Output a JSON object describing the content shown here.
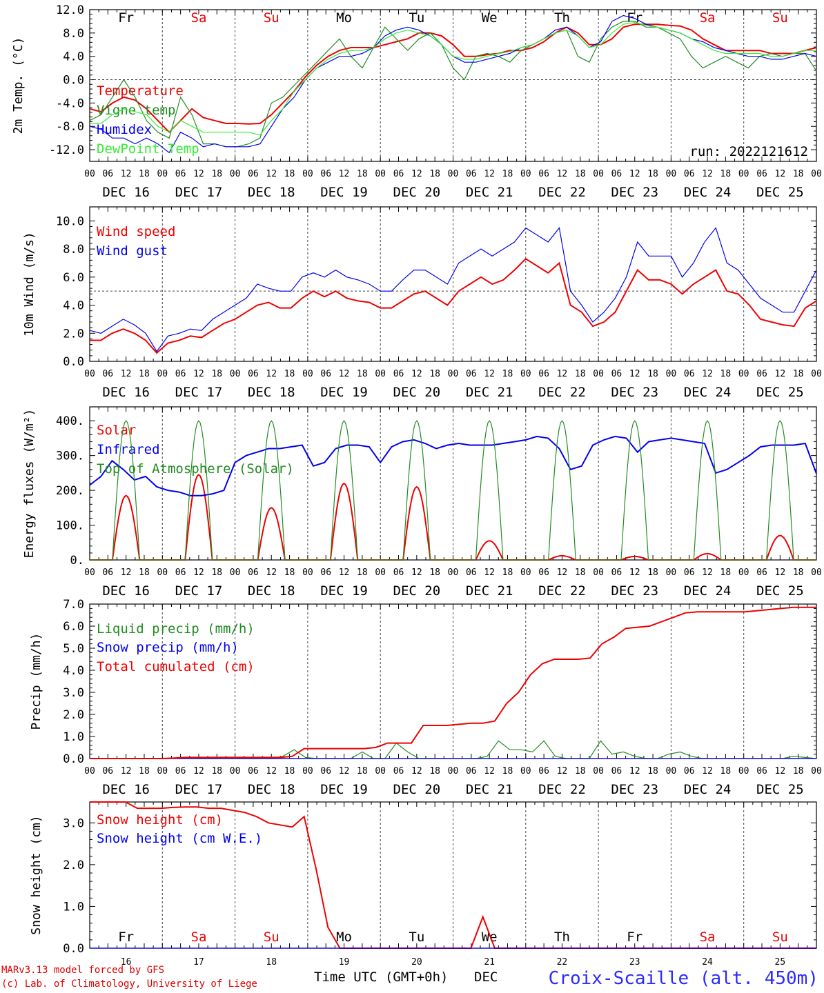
{
  "footer": {
    "credit_line1": "MARv3.13 model forced by GFS",
    "credit_line2": "(c) Lab. of Climatology, University of Liege",
    "time_label": "Time UTC (GMT+0h)",
    "month_label": "DEC",
    "station": "Croix-Scaille (alt. 450m)"
  },
  "days": [
    "DEC 16",
    "DEC 17",
    "DEC 18",
    "DEC 19",
    "DEC 20",
    "DEC 21",
    "DEC 22",
    "DEC 23",
    "DEC 24",
    "DEC 25"
  ],
  "day_numbers": [
    "16",
    "17",
    "18",
    "19",
    "20",
    "21",
    "22",
    "23",
    "24",
    "25"
  ],
  "weekdays": [
    "Fr",
    "Sa",
    "Su",
    "Mo",
    "Tu",
    "We",
    "Th",
    "Fr",
    "Sa",
    "Su"
  ],
  "weekend_flags": [
    false,
    true,
    true,
    false,
    false,
    false,
    false,
    false,
    true,
    true
  ],
  "hour_ticks": [
    "00",
    "06",
    "12",
    "18"
  ],
  "final_hour": "00",
  "colors": {
    "red": "#ee0000",
    "green": "#228b22",
    "blue": "#0000ee",
    "lightgreen": "#33ee33",
    "weekend": "#ee0000"
  },
  "chart_data": [
    {
      "type": "line",
      "ylabel": "2m Temp. (°C)",
      "ylim": [
        -14,
        12
      ],
      "yticks": [
        "-12.0",
        "-8.0",
        "-4.0",
        "0.0",
        "4.0",
        "8.0",
        "12.0"
      ],
      "yticks_values": [
        -12,
        -8,
        -4,
        0,
        4,
        8,
        12
      ],
      "reference_line": 0,
      "annotation": "run: 2022121612",
      "x_step_hours": 6,
      "series": [
        {
          "name": "Temperature",
          "color": "red",
          "values": [
            -5,
            -5.5,
            -4,
            -3,
            -3.5,
            -5,
            -7,
            -9,
            -7,
            -5,
            -6.5,
            -7,
            -7.5,
            -7.5,
            -7.6,
            -7.5,
            -6,
            -4,
            -2,
            0.5,
            2.5,
            4,
            5,
            5.5,
            5.5,
            5.5,
            6,
            6.5,
            7,
            8,
            8,
            7.5,
            6,
            4,
            4,
            4.3,
            4.5,
            5,
            5,
            5.5,
            6.5,
            8,
            9,
            8,
            6,
            6,
            7,
            9,
            9.5,
            9.5,
            9.5,
            9.3,
            9.2,
            8.5,
            7,
            6,
            5,
            5,
            5,
            5,
            4.5,
            4.5,
            4.5,
            5,
            5.5
          ]
        },
        {
          "name": "Vigne temp",
          "color": "green",
          "values": [
            -7,
            -6,
            -3,
            0,
            -3,
            -7,
            -9,
            -10,
            -3,
            -6,
            -11,
            -11,
            -11.5,
            -11.5,
            -11,
            -10,
            -4,
            -3,
            -1,
            1,
            3,
            5,
            7,
            4,
            2,
            5.5,
            9,
            7,
            5,
            7,
            8,
            6,
            2,
            0,
            4,
            4.5,
            4,
            3,
            5,
            6,
            7,
            8,
            8.5,
            4,
            3,
            7,
            9,
            10,
            10,
            9,
            9,
            8,
            7,
            4,
            2,
            3,
            4,
            3,
            2,
            4,
            4.5,
            4,
            4.5,
            4.5,
            1.5
          ]
        },
        {
          "name": "Humidex",
          "color": "blue",
          "values": [
            -8,
            -8.5,
            -10,
            -10,
            -11,
            -10,
            -11,
            -12.5,
            -9,
            -10,
            -11.5,
            -11,
            -11.5,
            -11.5,
            -11.5,
            -11,
            -8,
            -5,
            -3,
            0,
            2,
            3,
            4,
            4,
            4.5,
            5.5,
            7.5,
            8.5,
            9,
            8.5,
            7.5,
            6,
            4,
            3,
            3,
            3.5,
            4,
            4.5,
            5.5,
            6,
            7,
            8.5,
            9,
            7.5,
            5.5,
            6.5,
            10,
            11,
            10.5,
            9.5,
            9,
            8.5,
            8,
            7,
            6.5,
            5.5,
            5,
            4.5,
            4,
            4,
            3.5,
            3.5,
            4,
            4.5,
            4
          ]
        },
        {
          "name": "DewPoint Temp",
          "color": "lightgreen",
          "values": [
            -7.5,
            -7.5,
            -6,
            -5,
            -5.5,
            -6,
            -8,
            -9,
            -7,
            -8,
            -9,
            -9,
            -9,
            -9,
            -9,
            -9.5,
            -7,
            -5,
            -2,
            0,
            2,
            3.5,
            4.5,
            5,
            5,
            5.5,
            7,
            8,
            8.5,
            8,
            7.5,
            6,
            4,
            3.5,
            3.5,
            4,
            4.5,
            4.8,
            5.5,
            6,
            7,
            8,
            8.5,
            7.5,
            5.5,
            6,
            8,
            9.5,
            9.8,
            9.3,
            9,
            8.5,
            8,
            7,
            6,
            5,
            4.5,
            4.5,
            4.5,
            4.5,
            4,
            4,
            4.5,
            5,
            5
          ]
        }
      ]
    },
    {
      "type": "line",
      "ylabel": "10m Wind (m/s)",
      "ylim": [
        0,
        11
      ],
      "yticks": [
        "0.0",
        "2.0",
        "4.0",
        "6.0",
        "8.0",
        "10.0"
      ],
      "yticks_values": [
        0,
        2,
        4,
        6,
        8,
        10
      ],
      "reference_line": 5,
      "x_step_hours": 6,
      "series": [
        {
          "name": "Wind speed",
          "color": "red",
          "values": [
            1.5,
            1.5,
            2,
            2.3,
            2,
            1.5,
            0.6,
            1.3,
            1.5,
            1.8,
            1.7,
            2.2,
            2.7,
            3,
            3.5,
            4,
            4.2,
            3.8,
            3.8,
            4.5,
            5,
            4.6,
            5,
            4.5,
            4.3,
            4.2,
            3.8,
            3.8,
            4.3,
            4.8,
            5,
            4.5,
            4,
            5,
            5.5,
            6,
            5.5,
            5.8,
            6.5,
            7.3,
            6.8,
            6.3,
            7,
            4,
            3.5,
            2.5,
            2.8,
            3.5,
            5,
            6.5,
            5.8,
            5.8,
            5.5,
            4.8,
            5.5,
            6,
            6.5,
            5,
            4.8,
            4,
            3,
            2.8,
            2.6,
            2.5,
            3.8,
            4.3
          ]
        },
        {
          "name": "Wind gust",
          "color": "blue",
          "values": [
            2.2,
            2,
            2.5,
            3,
            2.6,
            2,
            0.7,
            1.8,
            2,
            2.3,
            2.2,
            3,
            3.5,
            4,
            4.5,
            5.5,
            5.2,
            5,
            5,
            6,
            6.3,
            6,
            6.5,
            6,
            5.8,
            5.5,
            5,
            5,
            5.8,
            6.5,
            6.5,
            6,
            5.5,
            7,
            7.5,
            8,
            7.5,
            8,
            8.5,
            9.5,
            9,
            8.5,
            9.5,
            5,
            4,
            2.8,
            3.5,
            4.5,
            6,
            8.5,
            7.5,
            7.5,
            7.5,
            6,
            7,
            8.5,
            9.5,
            7,
            6.5,
            5.5,
            4.5,
            4,
            3.5,
            3.5,
            5,
            6.5
          ]
        }
      ]
    },
    {
      "type": "line",
      "ylabel": "Energy fluxes (W/m²)",
      "ylim": [
        0,
        440
      ],
      "yticks": [
        "0.",
        "100.",
        "200.",
        "300.",
        "400."
      ],
      "yticks_values": [
        0,
        100,
        200,
        300,
        400
      ],
      "x_step_hours": 6,
      "peaks": {
        "solar": [
          185,
          245,
          150,
          220,
          210,
          55,
          12,
          10,
          18,
          70
        ],
        "toa": 400
      },
      "series": [
        {
          "name": "Solar",
          "color": "red"
        },
        {
          "name": "Infrared",
          "color": "blue",
          "values": [
            215,
            240,
            285,
            260,
            230,
            240,
            210,
            200,
            195,
            185,
            185,
            190,
            200,
            280,
            300,
            310,
            320,
            320,
            325,
            330,
            270,
            280,
            320,
            330,
            330,
            325,
            280,
            325,
            340,
            345,
            335,
            320,
            330,
            335,
            330,
            330,
            330,
            335,
            340,
            345,
            355,
            350,
            320,
            260,
            270,
            330,
            345,
            355,
            350,
            310,
            340,
            345,
            350,
            345,
            340,
            335,
            250,
            260,
            280,
            300,
            325,
            330,
            330,
            330,
            335,
            248
          ]
        },
        {
          "name": "Top of Atmosphere (Solar)",
          "color": "green"
        }
      ]
    },
    {
      "type": "line",
      "ylabel": "Precip (mm/h)",
      "ylim": [
        0,
        7
      ],
      "yticks": [
        "0.0",
        "1.0",
        "2.0",
        "3.0",
        "4.0",
        "5.0",
        "6.0",
        "7.0"
      ],
      "yticks_values": [
        0,
        1,
        2,
        3,
        4,
        5,
        6,
        7
      ],
      "x_step_hours": 6,
      "series": [
        {
          "name": "Liquid precip (mm/h)",
          "color": "green",
          "values": [
            0,
            0,
            0,
            0,
            0,
            0,
            0,
            0,
            0,
            0,
            0,
            0,
            0,
            0,
            0,
            0,
            0,
            0.1,
            0.4,
            0.05,
            0,
            0,
            0,
            0,
            0.3,
            0,
            0,
            0.7,
            0.3,
            0,
            0,
            0,
            0,
            0,
            0,
            0.1,
            0.8,
            0.4,
            0.4,
            0.3,
            0.8,
            0.1,
            0,
            0,
            0,
            0.8,
            0.2,
            0.3,
            0.1,
            0,
            0,
            0.2,
            0.3,
            0.1,
            0,
            0,
            0,
            0,
            0,
            0,
            0,
            0,
            0.1,
            0.05,
            0
          ]
        },
        {
          "name": "Snow precip (mm/h)",
          "color": "blue",
          "values": [
            0,
            0,
            0,
            0,
            0,
            0,
            0,
            0,
            0,
            0,
            0,
            0,
            0,
            0,
            0,
            0,
            0,
            0,
            0,
            0,
            0,
            0,
            0,
            0,
            0,
            0,
            0,
            0,
            0,
            0,
            0,
            0,
            0,
            0,
            0,
            0,
            0,
            0,
            0,
            0,
            0,
            0,
            0,
            0,
            0,
            0,
            0,
            0,
            0,
            0,
            0,
            0,
            0,
            0,
            0,
            0,
            0,
            0,
            0,
            0,
            0,
            0,
            0,
            0,
            0
          ]
        },
        {
          "name": "Total cumulated (cm)",
          "color": "red",
          "values": [
            0,
            0,
            0,
            0,
            0,
            0,
            0,
            0.02,
            0.05,
            0.05,
            0.05,
            0.05,
            0.05,
            0.05,
            0.05,
            0.05,
            0.05,
            0.1,
            0.45,
            0.45,
            0.45,
            0.45,
            0.45,
            0.45,
            0.5,
            0.7,
            0.7,
            0.7,
            1.5,
            1.5,
            1.5,
            1.55,
            1.6,
            1.6,
            1.7,
            2.5,
            3.0,
            3.8,
            4.3,
            4.5,
            4.5,
            4.5,
            4.55,
            5.2,
            5.5,
            5.9,
            5.95,
            6.0,
            6.2,
            6.4,
            6.6,
            6.65,
            6.65,
            6.65,
            6.65,
            6.65,
            6.7,
            6.75,
            6.8,
            6.85,
            6.85,
            6.85
          ]
        }
      ]
    },
    {
      "type": "line",
      "ylabel": "Snow height (cm)",
      "ylim": [
        0,
        3.5
      ],
      "yticks": [
        "0.0",
        "1.0",
        "2.0",
        "3.0"
      ],
      "yticks_values": [
        0,
        1,
        2,
        3
      ],
      "x_step_hours": 6,
      "series": [
        {
          "name": "Snow height (cm)",
          "color": "red",
          "values": [
            3.5,
            3.5,
            3.5,
            3.5,
            3.35,
            3.35,
            3.35,
            3.37,
            3.38,
            3.38,
            3.35,
            3.35,
            3.3,
            3.25,
            3.15,
            3.0,
            2.95,
            2.9,
            3.15,
            1.9,
            0.5,
            0,
            0,
            0,
            0,
            0,
            0,
            0,
            0,
            0,
            0,
            0,
            0,
            0.75,
            0,
            0,
            0,
            0,
            0,
            0,
            0,
            0,
            0,
            0,
            0,
            0,
            0,
            0,
            0,
            0,
            0,
            0,
            0,
            0,
            0,
            0,
            0,
            0,
            0,
            0,
            0,
            0
          ]
        },
        {
          "name": "Snow height (cm W.E.)",
          "color": "blue",
          "values": [
            0,
            0,
            0,
            0,
            0,
            0,
            0,
            0,
            0,
            0,
            0,
            0,
            0,
            0,
            0,
            0,
            0,
            0,
            0,
            0,
            0,
            0,
            0,
            0,
            0,
            0,
            0,
            0,
            0,
            0,
            0,
            0,
            0,
            0,
            0,
            0,
            0,
            0,
            0,
            0,
            0,
            0,
            0,
            0,
            0,
            0,
            0,
            0,
            0,
            0,
            0,
            0,
            0,
            0,
            0,
            0,
            0,
            0,
            0,
            0,
            0,
            0,
            0
          ]
        }
      ]
    }
  ]
}
